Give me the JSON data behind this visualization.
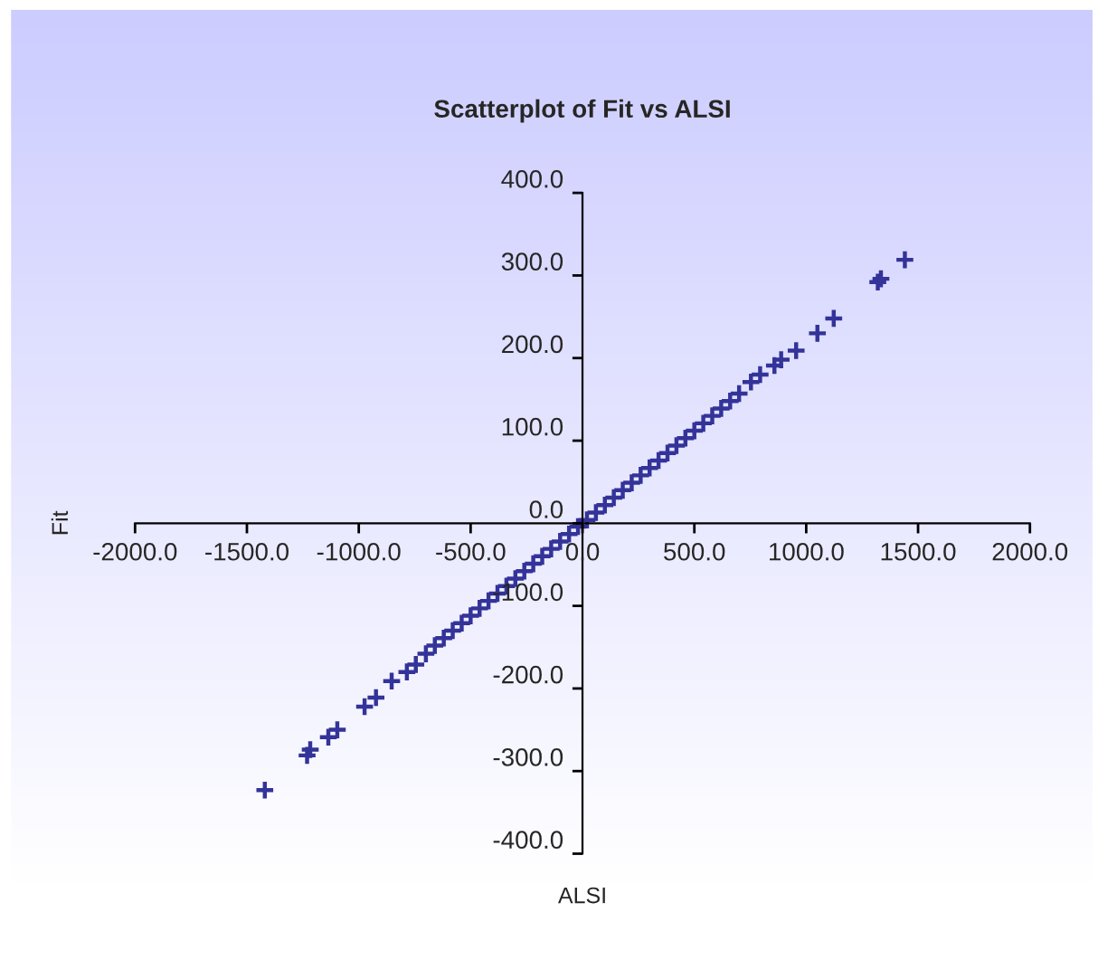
{
  "chart_data": {
    "type": "scatter",
    "title": "Scatterplot of Fit vs ALSI",
    "xlabel": "ALSI",
    "ylabel": "Fit",
    "series": [
      {
        "color": "#333399",
        "x": [
          -1420,
          -1231,
          -1217,
          -1136,
          -1096,
          -974,
          -923,
          -853,
          -785,
          -745,
          -700,
          -660,
          -620,
          -580,
          -540,
          -500,
          -460,
          -420,
          -380,
          -340,
          -300,
          -260,
          -220,
          -180,
          -140,
          -100,
          -60,
          -20,
          20,
          60,
          100,
          140,
          180,
          220,
          260,
          300,
          340,
          380,
          420,
          460,
          500,
          540,
          580,
          620,
          660,
          700,
          753,
          794,
          858,
          888,
          955,
          1050,
          1123,
          1320,
          1334,
          1441
        ],
        "values": [
          -323,
          -281,
          -274,
          -259,
          -250,
          -222,
          -211,
          -191,
          -180,
          -171,
          -158,
          -148,
          -139,
          -130,
          -121,
          -112,
          -103,
          -94,
          -85,
          -76,
          -67,
          -58,
          -49,
          -40,
          -31,
          -22,
          -13,
          -4,
          4,
          13,
          22,
          31,
          40,
          49,
          58,
          67,
          76,
          85,
          94,
          103,
          112,
          121,
          130,
          139,
          148,
          157,
          171,
          180,
          191,
          198,
          209,
          230,
          248,
          292,
          296,
          319
        ]
      }
    ],
    "marker": "cross",
    "xlim": [
      -2000,
      2000
    ],
    "ylim": [
      -400,
      400
    ],
    "xticks": [
      {
        "value": -2000,
        "label": "-2000.0"
      },
      {
        "value": -1500,
        "label": "-1500.0"
      },
      {
        "value": -1000,
        "label": "-1000.0"
      },
      {
        "value": -500,
        "label": "-500.0"
      },
      {
        "value": 0,
        "label": "0.0"
      },
      {
        "value": 500,
        "label": "500.0"
      },
      {
        "value": 1000,
        "label": "1000.0"
      },
      {
        "value": 1500,
        "label": "1500.0"
      },
      {
        "value": 2000,
        "label": "2000.0"
      }
    ],
    "yticks": [
      {
        "value": -400,
        "label": "-400.0"
      },
      {
        "value": -300,
        "label": "-300.0"
      },
      {
        "value": -200,
        "label": "-200.0"
      },
      {
        "value": -100,
        "label": "-100.0"
      },
      {
        "value": 0,
        "label": "0.0"
      },
      {
        "value": 100,
        "label": "100.0"
      },
      {
        "value": 200,
        "label": "200.0"
      },
      {
        "value": 300,
        "label": "300.0"
      },
      {
        "value": 400,
        "label": "400.0"
      }
    ],
    "grid": false
  }
}
